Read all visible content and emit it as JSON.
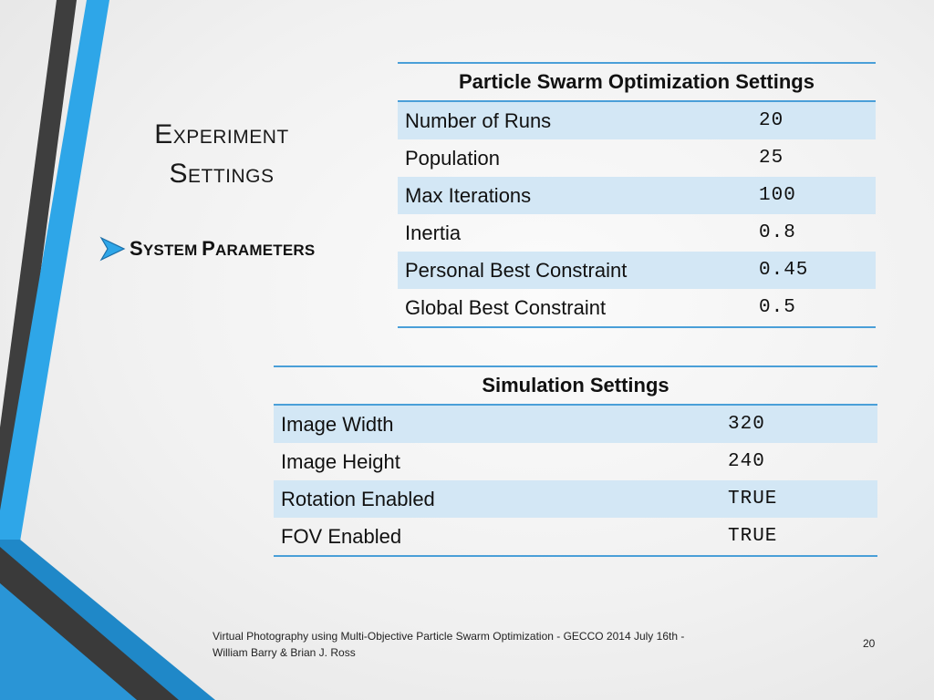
{
  "slide": {
    "title_line1_initial": "E",
    "title_line1_rest": "XPERIMENT",
    "title_line2_initial": "S",
    "title_line2_rest": "ETTINGS",
    "bullet_word1_initial": "S",
    "bullet_word1_rest": "YSTEM",
    "bullet_word2_initial": "P",
    "bullet_word2_rest": "ARAMETERS",
    "bullet_icon": "arrow-bullet-icon"
  },
  "pso_table": {
    "header": "Particle Swarm Optimization Settings",
    "rows": [
      {
        "label": "Number of Runs",
        "value": "20"
      },
      {
        "label": "Population",
        "value": "25"
      },
      {
        "label": "Max Iterations",
        "value": "100"
      },
      {
        "label": "Inertia",
        "value": "0.8"
      },
      {
        "label": "Personal Best Constraint",
        "value": "0.45"
      },
      {
        "label": "Global Best Constraint",
        "value": "0.5"
      }
    ]
  },
  "sim_table": {
    "header": "Simulation Settings",
    "rows": [
      {
        "label": "Image Width",
        "value": "320"
      },
      {
        "label": "Image Height",
        "value": "240"
      },
      {
        "label": "Rotation Enabled",
        "value": "TRUE"
      },
      {
        "label": "FOV Enabled",
        "value": "TRUE"
      }
    ]
  },
  "footer": {
    "line1": "Virtual Photography using Multi-Objective Particle Swarm Optimization - GECCO 2014 July 16th  -",
    "line2": "William Barry & Brian J. Ross",
    "page_number": "20"
  },
  "colors": {
    "accent_blue": "#2ea6e8",
    "dark_gray": "#3e3e3e",
    "row_band": "#d3e7f5",
    "table_rule": "#4a9fd8"
  }
}
